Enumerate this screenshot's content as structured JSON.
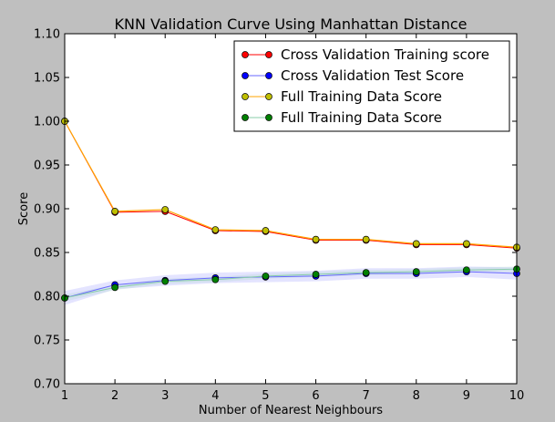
{
  "chart_data": {
    "type": "line",
    "title": "KNN Validation Curve Using Manhattan Distance",
    "xlabel": "Number of Nearest Neighbours",
    "ylabel": "Score",
    "xlim": [
      1,
      10
    ],
    "ylim": [
      0.7,
      1.1
    ],
    "x_ticks": [
      "1",
      "2",
      "3",
      "4",
      "5",
      "6",
      "7",
      "8",
      "9",
      "10"
    ],
    "y_ticks": [
      "0.70",
      "0.75",
      "0.80",
      "0.85",
      "0.90",
      "0.95",
      "1.00",
      "1.05",
      "1.10"
    ],
    "grid": false,
    "legend_position": "top-right",
    "x": [
      1,
      2,
      3,
      4,
      5,
      6,
      7,
      8,
      9,
      10
    ],
    "series": [
      {
        "name": "Cross Validation Training score",
        "color": "#ff0000",
        "values": [
          1.0,
          0.896,
          0.897,
          0.875,
          0.874,
          0.864,
          0.864,
          0.859,
          0.859,
          0.855
        ],
        "band_color": "#ff0000"
      },
      {
        "name": "Cross Validation Test Score",
        "color": "#0000ff",
        "values": [
          0.798,
          0.813,
          0.818,
          0.821,
          0.822,
          0.823,
          0.826,
          0.826,
          0.828,
          0.826
        ],
        "band_color": "#6a6aff",
        "band_halfwidth": [
          0.008,
          0.005,
          0.006,
          0.006,
          0.006,
          0.006,
          0.006,
          0.006,
          0.006,
          0.007
        ]
      },
      {
        "name": "Full Training Data Score",
        "color": "#bfbf00",
        "values": [
          1.0,
          0.897,
          0.899,
          0.876,
          0.875,
          0.865,
          0.865,
          0.86,
          0.86,
          0.856
        ],
        "band_color": "#ffa500"
      },
      {
        "name": "Full Training Data Score",
        "color": "#008000",
        "values": [
          0.798,
          0.81,
          0.817,
          0.819,
          0.823,
          0.825,
          0.827,
          0.828,
          0.83,
          0.831
        ],
        "band_color": "#88ccaa",
        "band_halfwidth": [
          0.004,
          0.003,
          0.003,
          0.003,
          0.003,
          0.003,
          0.003,
          0.003,
          0.003,
          0.003
        ]
      }
    ]
  }
}
